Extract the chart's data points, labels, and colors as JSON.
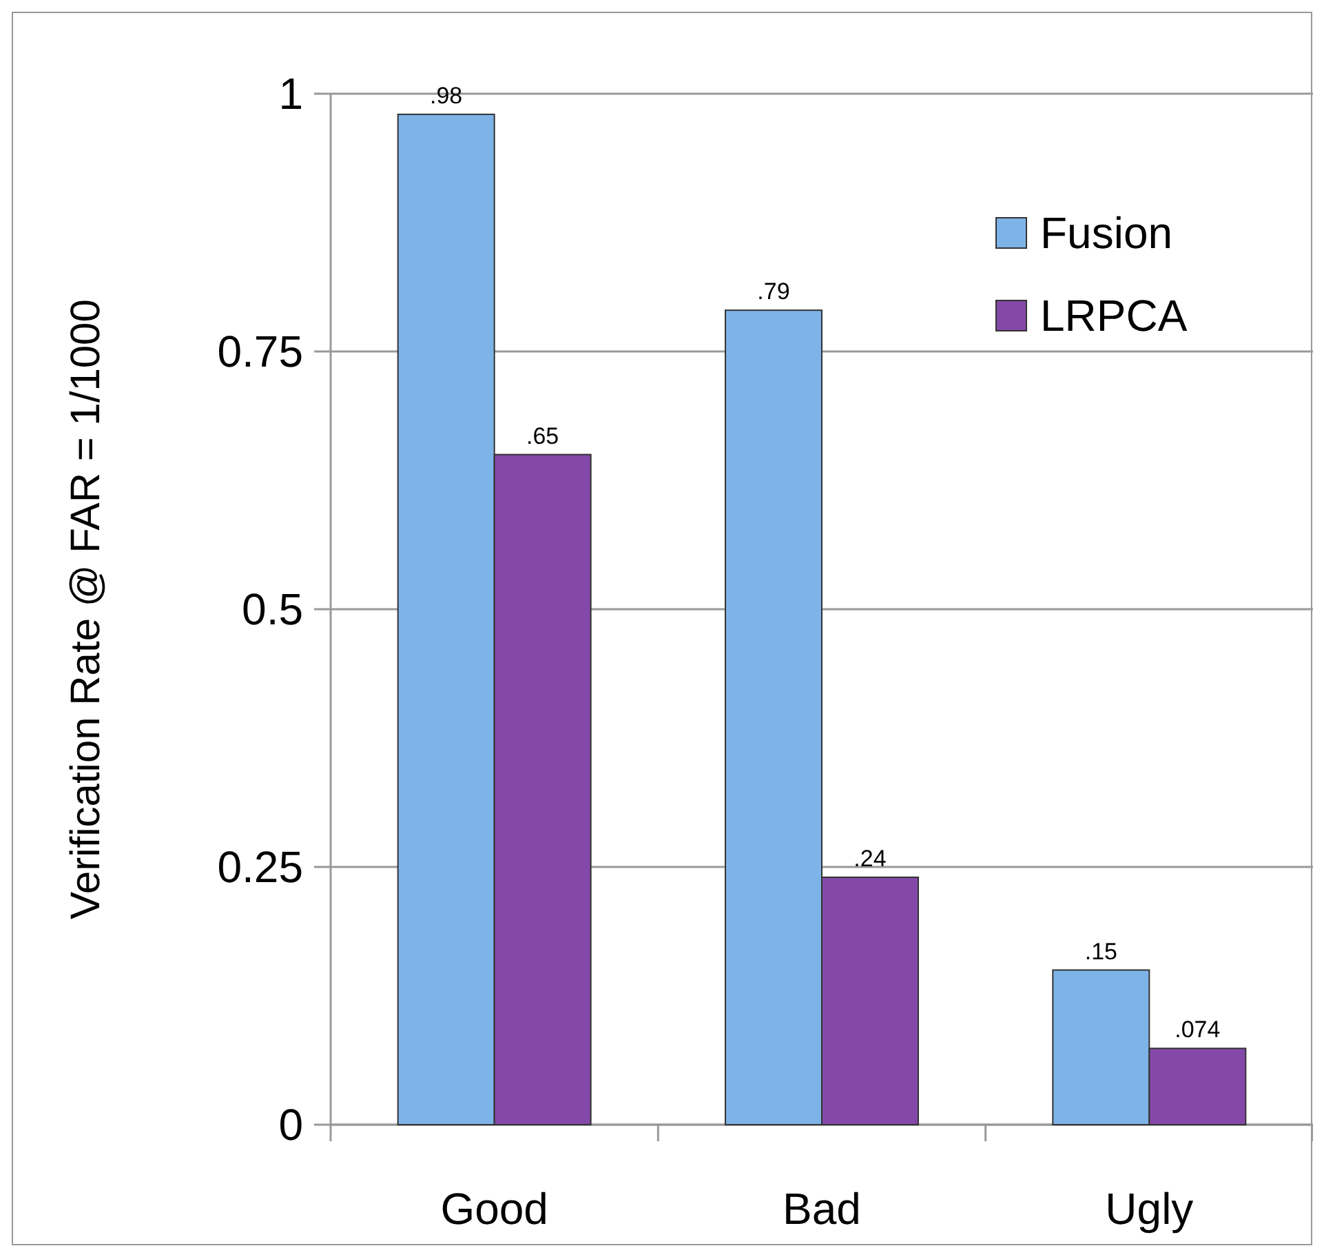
{
  "chart_data": {
    "type": "bar",
    "ylabel": "Verification Rate @ FAR = 1/1000",
    "categories": [
      "Good",
      "Bad",
      "Ugly"
    ],
    "series": [
      {
        "name": "Fusion",
        "color": "#7eb3e8",
        "values": [
          0.98,
          0.79,
          0.15
        ],
        "value_labels": [
          ".98",
          ".79",
          ".15"
        ]
      },
      {
        "name": "LRPCA",
        "color": "#8449a8",
        "values": [
          0.65,
          0.24,
          0.074
        ],
        "value_labels": [
          ".65",
          ".24",
          ".074"
        ]
      }
    ],
    "ylim": [
      0,
      1
    ],
    "yticks": [
      0,
      0.25,
      0.5,
      0.75,
      1
    ],
    "grid": "y",
    "legend": "top right"
  }
}
